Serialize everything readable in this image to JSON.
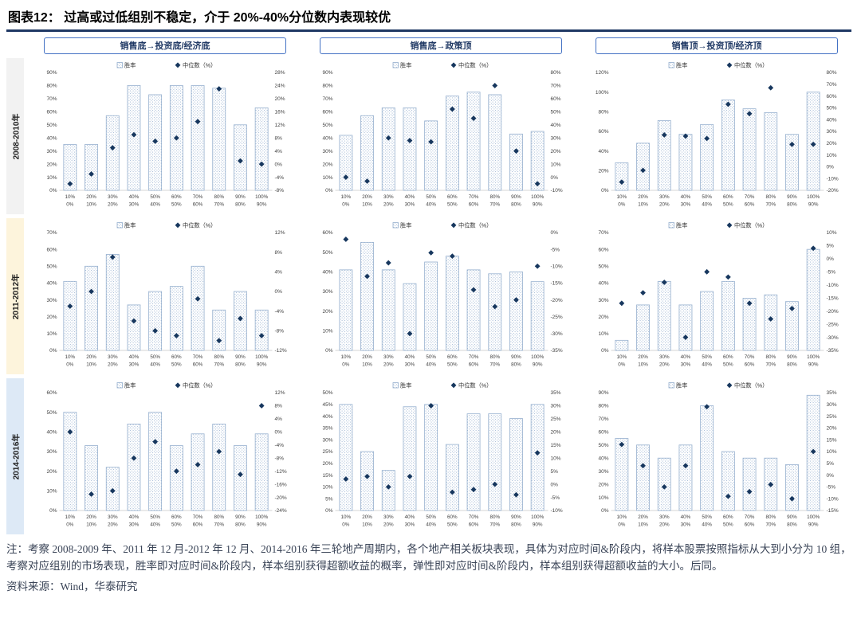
{
  "title": "图表12：  过高或过低组别不稳定，介于 20%-40%分位数内表现较优",
  "column_headers": [
    "销售底→投资底/经济底",
    "销售底→政策顶",
    "销售顶→投资顶/经济顶"
  ],
  "row_labels": [
    "2008-2010年",
    "2011-2012年",
    "2014-2016年"
  ],
  "row_colors": [
    "#f2f2f2",
    "#fdf4dc",
    "#dde9f6"
  ],
  "colors": {
    "navy": "#1f3864",
    "diamond": "#17375e",
    "header_border": "#4472c4",
    "bar_stroke": "#95afce",
    "bar_dot": "#9db4d2",
    "axis_line": "#c9c9c9"
  },
  "notes": "注：考察 2008-2009 年、2011 年 12 月-2012 年 12 月、2014-2016 年三轮地产周期内，各个地产相关板块表现，具体为对应时间&阶段内，将样本股票按照指标从大到小分为 10 组，考察对应组别的市场表现，胜率即对应时间&阶段内，样本组别获得超额收益的概率，弹性即对应时间&阶段内，样本组别获得超额收益的大小。后同。",
  "source": "资料来源：Wind，华泰研究",
  "chart_data": {
    "type": "bar",
    "layout": "3x3-grid, each chart: bars on left axis (胜率) + scatter diamonds on right axis (中位数 %)",
    "shared": {
      "chart_type": "bar+scatter",
      "series_names": [
        "胜率",
        "中位数（%）"
      ],
      "categories_top": [
        "10%",
        "20%",
        "30%",
        "40%",
        "50%",
        "60%",
        "70%",
        "80%",
        "90%",
        "100%"
      ],
      "categories_bottom": [
        "0%",
        "10%",
        "20%",
        "30%",
        "40%",
        "50%",
        "60%",
        "70%",
        "80%",
        "90%"
      ]
    },
    "charts": [
      {
        "row": "2008-2010年",
        "col": "销售底→投资底/经济底",
        "left_axis": {
          "min": 0,
          "max": 90,
          "step": 10
        },
        "right_axis": {
          "min": -8,
          "max": 28,
          "step": 4
        },
        "win_rate": [
          35,
          35,
          57,
          80,
          73,
          80,
          80,
          78,
          50,
          63
        ],
        "median": [
          -6,
          -3,
          5,
          9,
          7,
          8,
          13,
          23,
          1,
          0
        ]
      },
      {
        "row": "2008-2010年",
        "col": "销售底→政策顶",
        "left_axis": {
          "min": 0,
          "max": 90,
          "step": 10
        },
        "right_axis": {
          "min": -10,
          "max": 80,
          "step": 10
        },
        "win_rate": [
          42,
          57,
          63,
          63,
          53,
          72,
          75,
          73,
          43,
          45
        ],
        "median": [
          0,
          -3,
          30,
          28,
          27,
          52,
          45,
          70,
          20,
          -5
        ]
      },
      {
        "row": "2008-2010年",
        "col": "销售顶→投资顶/经济顶",
        "left_axis": {
          "min": 0,
          "max": 120,
          "step": 20
        },
        "right_axis": {
          "min": -20,
          "max": 80,
          "step": 10
        },
        "win_rate": [
          28,
          48,
          71,
          57,
          67,
          92,
          83,
          79,
          57,
          100
        ],
        "median": [
          -13,
          -3,
          27,
          26,
          24,
          53,
          45,
          67,
          19,
          19
        ]
      },
      {
        "row": "2011-2012年",
        "col": "销售底→投资底/经济底",
        "left_axis": {
          "min": 0,
          "max": 70,
          "step": 10
        },
        "right_axis": {
          "min": -12,
          "max": 12,
          "step": 4
        },
        "win_rate": [
          41,
          50,
          57,
          27,
          35,
          38,
          50,
          24,
          35,
          24
        ],
        "median": [
          -3,
          0,
          7,
          -6,
          -8,
          -9,
          -1.5,
          -10,
          -5.5,
          -9
        ]
      },
      {
        "row": "2011-2012年",
        "col": "销售底→政策顶",
        "left_axis": {
          "min": 0,
          "max": 60,
          "step": 10
        },
        "right_axis": {
          "min": -35,
          "max": 0,
          "step": 5
        },
        "win_rate": [
          41,
          55,
          41,
          34,
          45,
          48,
          41,
          39,
          40,
          35
        ],
        "median": [
          -2,
          -13,
          -9,
          -30,
          -6,
          -7,
          -17,
          -22,
          -20,
          -10
        ]
      },
      {
        "row": "2011-2012年",
        "col": "销售顶→投资顶/经济顶",
        "left_axis": {
          "min": 0,
          "max": 70,
          "step": 10
        },
        "right_axis": {
          "min": -35,
          "max": 10,
          "step": 5
        },
        "win_rate": [
          6,
          27,
          41,
          27,
          35,
          41,
          31,
          33,
          29,
          60
        ],
        "median": [
          -17,
          -13,
          -9,
          -30,
          -5,
          -7,
          -17,
          -23,
          -19,
          4
        ]
      },
      {
        "row": "2014-2016年",
        "col": "销售底→投资底/经济底",
        "left_axis": {
          "min": 0,
          "max": 60,
          "step": 10
        },
        "right_axis": {
          "min": -24,
          "max": 12,
          "step": 4
        },
        "win_rate": [
          50,
          33,
          22,
          44,
          50,
          33,
          39,
          44,
          33,
          39
        ],
        "median": [
          0,
          -19,
          -18,
          -8,
          -3,
          -12,
          -10,
          -6,
          -13,
          8
        ]
      },
      {
        "row": "2014-2016年",
        "col": "销售底→政策顶",
        "left_axis": {
          "min": 0,
          "max": 50,
          "step": 5
        },
        "right_axis": {
          "min": -10,
          "max": 35,
          "step": 5
        },
        "win_rate": [
          45,
          25,
          17,
          44,
          45,
          28,
          41,
          41,
          39,
          45
        ],
        "median": [
          2,
          3,
          -1,
          3,
          30,
          -3,
          -2,
          0,
          -4,
          12
        ]
      },
      {
        "row": "2014-2016年",
        "col": "销售顶→投资顶/经济顶",
        "left_axis": {
          "min": 0,
          "max": 90,
          "step": 10
        },
        "right_axis": {
          "min": -15,
          "max": 35,
          "step": 5
        },
        "win_rate": [
          55,
          50,
          40,
          50,
          80,
          45,
          40,
          40,
          35,
          88
        ],
        "median": [
          13,
          4,
          -5,
          4,
          29,
          -9,
          -7,
          -4,
          -10,
          10
        ]
      }
    ]
  }
}
